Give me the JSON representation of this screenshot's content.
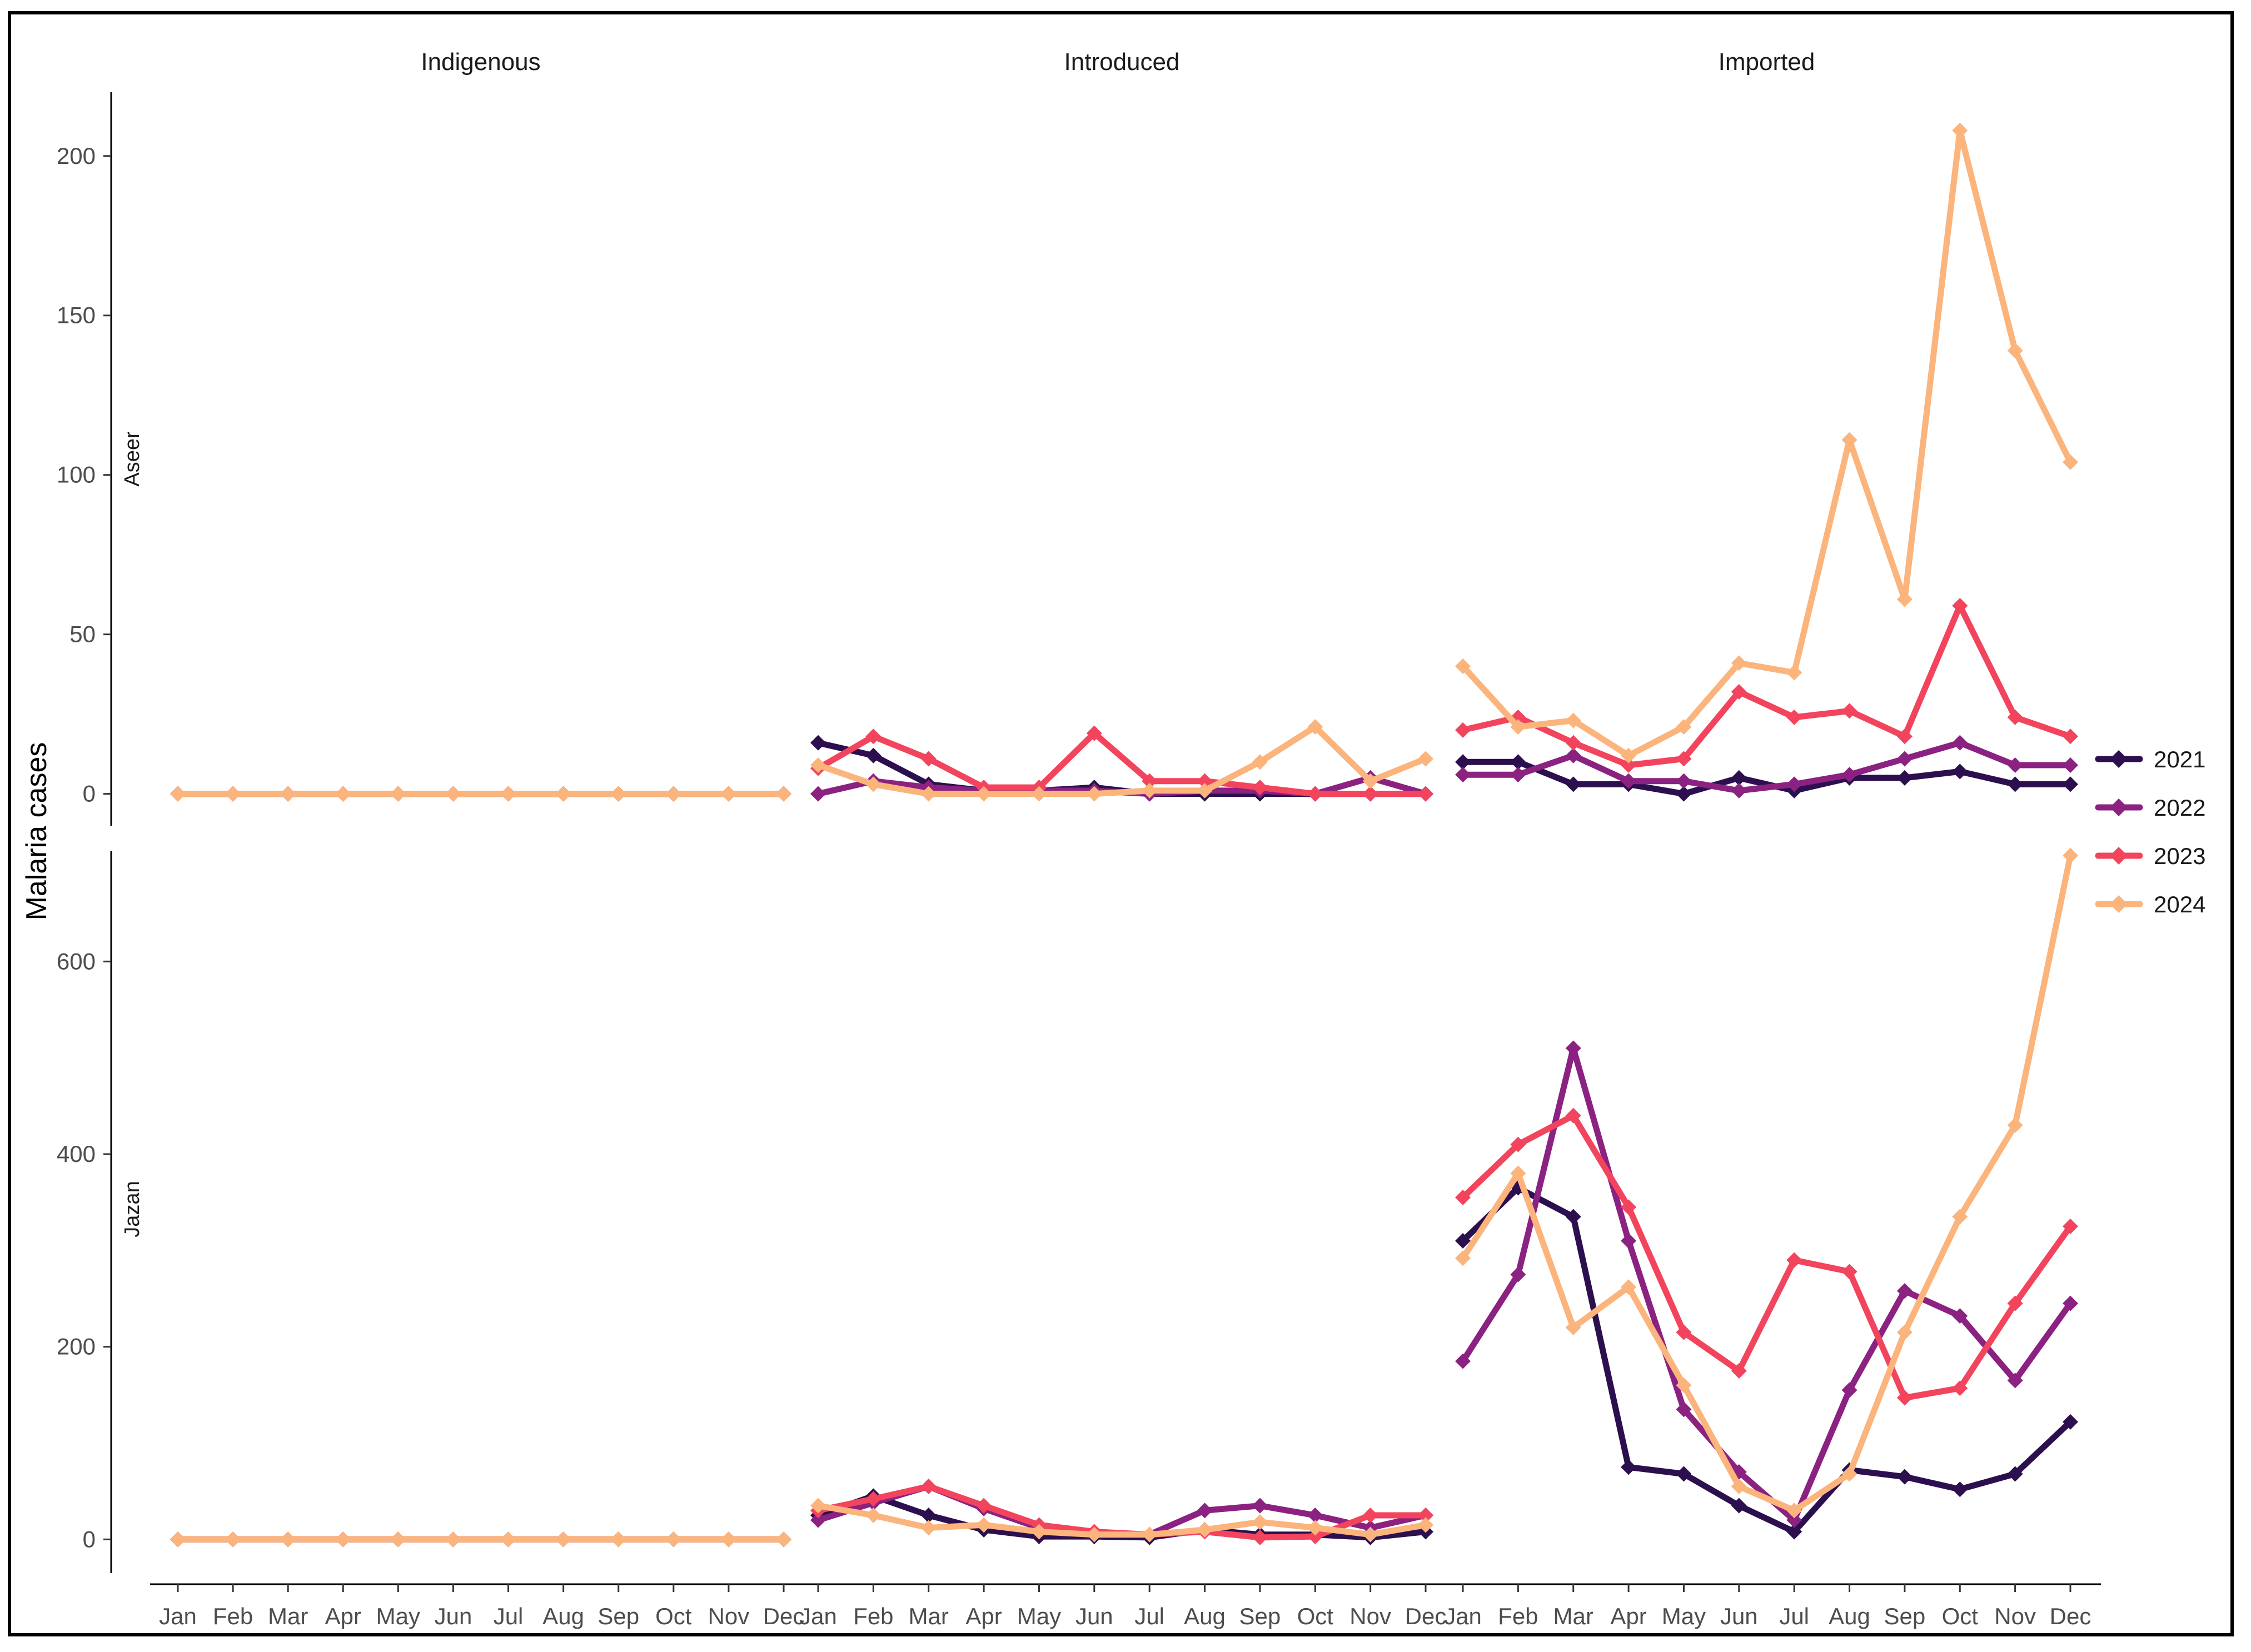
{
  "chart_data": {
    "type": "line",
    "ylabel": "Malaria cases",
    "months": [
      "Jan",
      "Feb",
      "Mar",
      "Apr",
      "May",
      "Jun",
      "Jul",
      "Aug",
      "Sep",
      "Oct",
      "Nov",
      "Dec"
    ],
    "columns": [
      "Indigenous",
      "Introduced",
      "Imported"
    ],
    "rows": [
      "Aseer",
      "Jazan"
    ],
    "legend": {
      "position": "right",
      "entries": [
        {
          "name": "2021",
          "color": "#2c0f4e"
        },
        {
          "name": "2022",
          "color": "#8b2181"
        },
        {
          "name": "2023",
          "color": "#f2445d"
        },
        {
          "name": "2024",
          "color": "#fbb47c"
        }
      ]
    },
    "panels": [
      {
        "row": "Aseer",
        "ylim": [
          -10,
          220
        ],
        "yticks": [
          "0",
          "50",
          "100",
          "150",
          "200"
        ],
        "columns": [
          {
            "column": "Indigenous",
            "series": [
              {
                "name": "2021",
                "values": [
                  0,
                  0,
                  0,
                  0,
                  0,
                  0,
                  0,
                  0,
                  0,
                  0,
                  0,
                  0
                ]
              },
              {
                "name": "2022",
                "values": [
                  0,
                  0,
                  0,
                  0,
                  0,
                  0,
                  0,
                  0,
                  0,
                  0,
                  0,
                  0
                ]
              },
              {
                "name": "2023",
                "values": [
                  0,
                  0,
                  0,
                  0,
                  0,
                  0,
                  0,
                  0,
                  0,
                  0,
                  0,
                  0
                ]
              },
              {
                "name": "2024",
                "values": [
                  0,
                  0,
                  0,
                  0,
                  0,
                  0,
                  0,
                  0,
                  0,
                  0,
                  0,
                  0
                ]
              }
            ]
          },
          {
            "column": "Introduced",
            "series": [
              {
                "name": "2021",
                "values": [
                  16,
                  12,
                  3,
                  1,
                  1,
                  2,
                  0,
                  0,
                  0,
                  0,
                  0,
                  0
                ]
              },
              {
                "name": "2022",
                "values": [
                  0,
                  4,
                  2,
                  1,
                  1,
                  1,
                  0,
                  1,
                  1,
                  0,
                  5,
                  0
                ]
              },
              {
                "name": "2023",
                "values": [
                  8,
                  18,
                  11,
                  2,
                  2,
                  19,
                  4,
                  4,
                  2,
                  0,
                  0,
                  0
                ]
              },
              {
                "name": "2024",
                "values": [
                  9,
                  3,
                  0,
                  0,
                  0,
                  0,
                  1,
                  1,
                  10,
                  21,
                  4,
                  11
                ]
              }
            ]
          },
          {
            "column": "Imported",
            "series": [
              {
                "name": "2021",
                "values": [
                  10,
                  10,
                  3,
                  3,
                  0,
                  5,
                  1,
                  5,
                  5,
                  7,
                  3,
                  3
                ]
              },
              {
                "name": "2022",
                "values": [
                  6,
                  6,
                  12,
                  4,
                  4,
                  1,
                  3,
                  6,
                  11,
                  16,
                  9,
                  9
                ]
              },
              {
                "name": "2023",
                "values": [
                  20,
                  24,
                  16,
                  9,
                  11,
                  32,
                  24,
                  26,
                  18,
                  59,
                  24,
                  18
                ]
              },
              {
                "name": "2024",
                "values": [
                  40,
                  21,
                  23,
                  12,
                  21,
                  41,
                  38,
                  111,
                  61,
                  208,
                  139,
                  104
                ]
              }
            ]
          }
        ]
      },
      {
        "row": "Jazan",
        "ylim": [
          -35,
          715
        ],
        "yticks": [
          "0",
          "200",
          "400",
          "600"
        ],
        "columns": [
          {
            "column": "Indigenous",
            "series": [
              {
                "name": "2021",
                "values": [
                  0,
                  0,
                  0,
                  0,
                  0,
                  0,
                  0,
                  0,
                  0,
                  0,
                  0,
                  0
                ]
              },
              {
                "name": "2022",
                "values": [
                  0,
                  0,
                  0,
                  0,
                  0,
                  0,
                  0,
                  0,
                  0,
                  0,
                  0,
                  0
                ]
              },
              {
                "name": "2023",
                "values": [
                  0,
                  0,
                  0,
                  0,
                  0,
                  0,
                  0,
                  0,
                  0,
                  0,
                  0,
                  0
                ]
              },
              {
                "name": "2024",
                "values": [
                  0,
                  0,
                  0,
                  0,
                  0,
                  0,
                  0,
                  0,
                  0,
                  0,
                  0,
                  0
                ]
              }
            ]
          },
          {
            "column": "Introduced",
            "series": [
              {
                "name": "2021",
                "values": [
                  25,
                  45,
                  25,
                  10,
                  3,
                  3,
                  2,
                  10,
                  5,
                  5,
                  2,
                  8
                ]
              },
              {
                "name": "2022",
                "values": [
                  20,
                  38,
                  55,
                  32,
                  12,
                  7,
                  5,
                  30,
                  35,
                  25,
                  12,
                  25
                ]
              },
              {
                "name": "2023",
                "values": [
                  30,
                  42,
                  55,
                  35,
                  15,
                  8,
                  5,
                  8,
                  2,
                  3,
                  25,
                  25
                ]
              },
              {
                "name": "2024",
                "values": [
                  35,
                  25,
                  12,
                  15,
                  8,
                  5,
                  5,
                  10,
                  18,
                  12,
                  5,
                  15
                ]
              }
            ]
          },
          {
            "column": "Imported",
            "series": [
              {
                "name": "2021",
                "values": [
                  310,
                  365,
                  335,
                  75,
                  68,
                  35,
                  8,
                  72,
                  65,
                  52,
                  68,
                  122
                ]
              },
              {
                "name": "2022",
                "values": [
                  185,
                  275,
                  510,
                  310,
                  135,
                  70,
                  20,
                  155,
                  258,
                  232,
                  165,
                  245
                ]
              },
              {
                "name": "2023",
                "values": [
                  355,
                  410,
                  440,
                  345,
                  215,
                  175,
                  290,
                  278,
                  147,
                  157,
                  245,
                  325
                ]
              },
              {
                "name": "2024",
                "values": [
                  292,
                  380,
                  220,
                  262,
                  160,
                  55,
                  30,
                  68,
                  215,
                  335,
                  430,
                  710
                ]
              }
            ]
          }
        ]
      }
    ]
  }
}
